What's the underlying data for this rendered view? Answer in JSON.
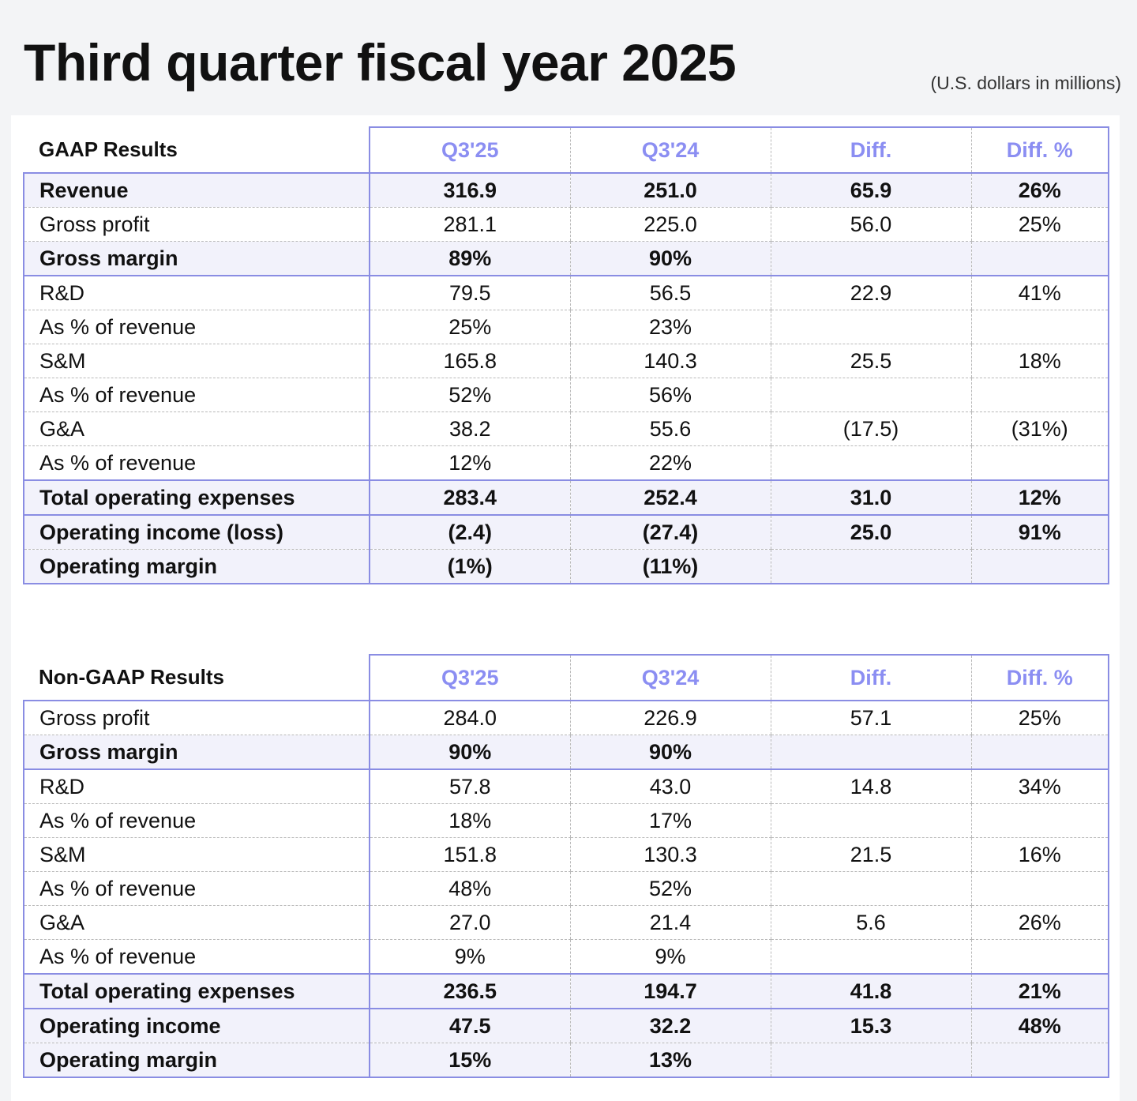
{
  "title": "Third quarter fiscal year 2025",
  "units": "(U.S. dollars in millions)",
  "gaap": {
    "section_label": "GAAP Results",
    "columns": [
      "Q3'25",
      "Q3'24",
      "Diff.",
      "Diff. %"
    ],
    "rows": [
      {
        "label": "Revenue",
        "values": [
          "316.9",
          "251.0",
          "65.9",
          "26%"
        ]
      },
      {
        "label": "Gross profit",
        "values": [
          "281.1",
          "225.0",
          "56.0",
          "25%"
        ]
      },
      {
        "label": "Gross margin",
        "values": [
          "89%",
          "90%",
          "",
          ""
        ]
      },
      {
        "label": "R&D",
        "values": [
          "79.5",
          "56.5",
          "22.9",
          "41%"
        ]
      },
      {
        "label": "As % of revenue",
        "values": [
          "25%",
          "23%",
          "",
          ""
        ]
      },
      {
        "label": "S&M",
        "values": [
          "165.8",
          "140.3",
          "25.5",
          "18%"
        ]
      },
      {
        "label": "As % of revenue",
        "values": [
          "52%",
          "56%",
          "",
          ""
        ]
      },
      {
        "label": "G&A",
        "values": [
          "38.2",
          "55.6",
          "(17.5)",
          "(31%)"
        ]
      },
      {
        "label": "As % of revenue",
        "values": [
          "12%",
          "22%",
          "",
          ""
        ]
      },
      {
        "label": "Total operating expenses",
        "values": [
          "283.4",
          "252.4",
          "31.0",
          "12%"
        ]
      },
      {
        "label": "Operating income (loss)",
        "values": [
          "(2.4)",
          "(27.4)",
          "25.0",
          "91%"
        ]
      },
      {
        "label": "Operating margin",
        "values": [
          "(1%)",
          "(11%)",
          "",
          ""
        ]
      }
    ]
  },
  "non_gaap": {
    "section_label": "Non-GAAP Results",
    "columns": [
      "Q3'25",
      "Q3'24",
      "Diff.",
      "Diff. %"
    ],
    "rows": [
      {
        "label": "Gross profit",
        "values": [
          "284.0",
          "226.9",
          "57.1",
          "25%"
        ]
      },
      {
        "label": "Gross margin",
        "values": [
          "90%",
          "90%",
          "",
          ""
        ]
      },
      {
        "label": "R&D",
        "values": [
          "57.8",
          "43.0",
          "14.8",
          "34%"
        ]
      },
      {
        "label": "As % of revenue",
        "values": [
          "18%",
          "17%",
          "",
          ""
        ]
      },
      {
        "label": "S&M",
        "values": [
          "151.8",
          "130.3",
          "21.5",
          "16%"
        ]
      },
      {
        "label": "As % of revenue",
        "values": [
          "48%",
          "52%",
          "",
          ""
        ]
      },
      {
        "label": "G&A",
        "values": [
          "27.0",
          "21.4",
          "5.6",
          "26%"
        ]
      },
      {
        "label": "As % of revenue",
        "values": [
          "9%",
          "9%",
          "",
          ""
        ]
      },
      {
        "label": "Total operating expenses",
        "values": [
          "236.5",
          "194.7",
          "41.8",
          "21%"
        ]
      },
      {
        "label": "Operating income",
        "values": [
          "47.5",
          "32.2",
          "15.3",
          "48%"
        ]
      },
      {
        "label": "Operating margin",
        "values": [
          "15%",
          "13%",
          "",
          ""
        ]
      }
    ]
  }
}
